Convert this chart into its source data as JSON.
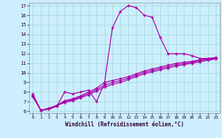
{
  "xlabel": "Windchill (Refroidissement éolien,°C)",
  "bg_color": "#cceeff",
  "grid_color": "#aadddd",
  "line_color": "#aa00aa",
  "xlim": [
    -0.5,
    23.5
  ],
  "ylim": [
    5.8,
    17.3
  ],
  "xticks": [
    0,
    1,
    2,
    3,
    4,
    5,
    6,
    7,
    8,
    9,
    10,
    11,
    12,
    13,
    14,
    15,
    16,
    17,
    18,
    19,
    20,
    21,
    22,
    23
  ],
  "yticks": [
    6,
    7,
    8,
    9,
    10,
    11,
    12,
    13,
    14,
    15,
    16,
    17
  ],
  "line1_x": [
    0,
    1,
    2,
    3,
    4,
    5,
    6,
    7,
    8,
    9,
    10,
    11,
    12,
    13,
    14,
    15,
    16,
    17,
    18,
    19,
    20,
    21,
    22,
    23
  ],
  "line1_y": [
    7.8,
    6.1,
    6.2,
    6.5,
    8.0,
    7.8,
    8.0,
    8.2,
    7.0,
    8.9,
    14.7,
    16.4,
    17.0,
    16.8,
    16.0,
    15.8,
    13.7,
    12.0,
    12.0,
    12.0,
    11.8,
    11.5,
    11.5,
    11.5
  ],
  "line2_x": [
    0,
    1,
    2,
    3,
    4,
    5,
    6,
    7,
    8,
    9,
    10,
    11,
    12,
    13,
    14,
    15,
    16,
    17,
    18,
    19,
    20,
    21,
    22,
    23
  ],
  "line2_y": [
    7.5,
    6.1,
    6.3,
    6.6,
    6.9,
    7.1,
    7.4,
    7.7,
    8.1,
    8.5,
    8.8,
    9.0,
    9.3,
    9.6,
    9.9,
    10.1,
    10.3,
    10.5,
    10.7,
    10.85,
    11.0,
    11.15,
    11.3,
    11.45
  ],
  "line3_x": [
    0,
    1,
    2,
    3,
    4,
    5,
    6,
    7,
    8,
    9,
    10,
    11,
    12,
    13,
    14,
    15,
    16,
    17,
    18,
    19,
    20,
    21,
    22,
    23
  ],
  "line3_y": [
    7.7,
    6.1,
    6.3,
    6.6,
    7.1,
    7.3,
    7.6,
    8.0,
    8.4,
    9.0,
    9.2,
    9.4,
    9.6,
    9.9,
    10.2,
    10.4,
    10.6,
    10.8,
    11.0,
    11.1,
    11.2,
    11.35,
    11.5,
    11.6
  ],
  "line4_x": [
    0,
    1,
    2,
    3,
    4,
    5,
    6,
    7,
    8,
    9,
    10,
    11,
    12,
    13,
    14,
    15,
    16,
    17,
    18,
    19,
    20,
    21,
    22,
    23
  ],
  "line4_y": [
    7.6,
    6.1,
    6.3,
    6.6,
    7.0,
    7.2,
    7.5,
    7.85,
    8.25,
    8.7,
    9.0,
    9.2,
    9.45,
    9.75,
    10.05,
    10.25,
    10.45,
    10.65,
    10.85,
    10.975,
    11.1,
    11.275,
    11.4,
    11.525
  ]
}
